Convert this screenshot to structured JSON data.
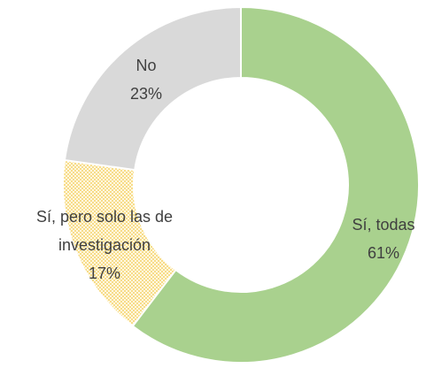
{
  "chart_data": {
    "type": "donut",
    "categories": [
      "Sí, todas",
      "Sí, pero solo las de investigación",
      "No"
    ],
    "values": [
      61,
      17,
      23
    ],
    "value_labels": [
      "61%",
      "17%",
      "23%"
    ],
    "colors": [
      "#a9d18e",
      "#ffe699",
      "#d9d9d9"
    ],
    "patterns": [
      null,
      "dots",
      null
    ]
  }
}
